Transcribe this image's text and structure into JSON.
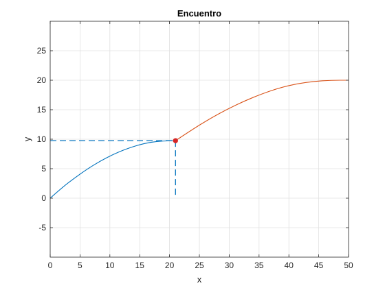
{
  "chart_data": {
    "type": "line",
    "title": "Encuentro",
    "xlabel": "x",
    "ylabel": "y",
    "xlim": [
      0,
      50
    ],
    "ylim": [
      -10,
      30
    ],
    "xticks": [
      0,
      5,
      10,
      15,
      20,
      25,
      30,
      35,
      40,
      45,
      50
    ],
    "yticks": [
      -5,
      0,
      5,
      10,
      15,
      20,
      25
    ],
    "grid": true,
    "box": true,
    "series": [
      {
        "color": "#0072BD",
        "style": "solid",
        "x": [
          0,
          2.1,
          4.2,
          6.3,
          8.4,
          10.5,
          12.6,
          14.7,
          16.8,
          18.9,
          21.0
        ],
        "y": [
          0,
          1.9,
          3.5,
          5.0,
          6.3,
          7.4,
          8.3,
          9.0,
          9.5,
          9.7,
          9.75
        ]
      },
      {
        "color": "#D95319",
        "style": "solid",
        "x": [
          21.0,
          23.9,
          26.8,
          29.7,
          32.6,
          35.5,
          38.4,
          41.3,
          44.2,
          47.1,
          50.0
        ],
        "y": [
          9.75,
          11.7,
          13.5,
          15.1,
          16.5,
          17.7,
          18.7,
          19.4,
          19.8,
          20.0,
          20.0
        ]
      },
      {
        "color": "#0072BD",
        "style": "dashed",
        "x": [
          0,
          21.0
        ],
        "y": [
          9.75,
          9.75
        ]
      },
      {
        "color": "#0072BD",
        "style": "dashed",
        "x": [
          21.0,
          21.0
        ],
        "y": [
          9.75,
          0
        ]
      }
    ],
    "points": [
      {
        "x": 21.0,
        "y": 9.75,
        "color": "#D62728"
      }
    ]
  }
}
